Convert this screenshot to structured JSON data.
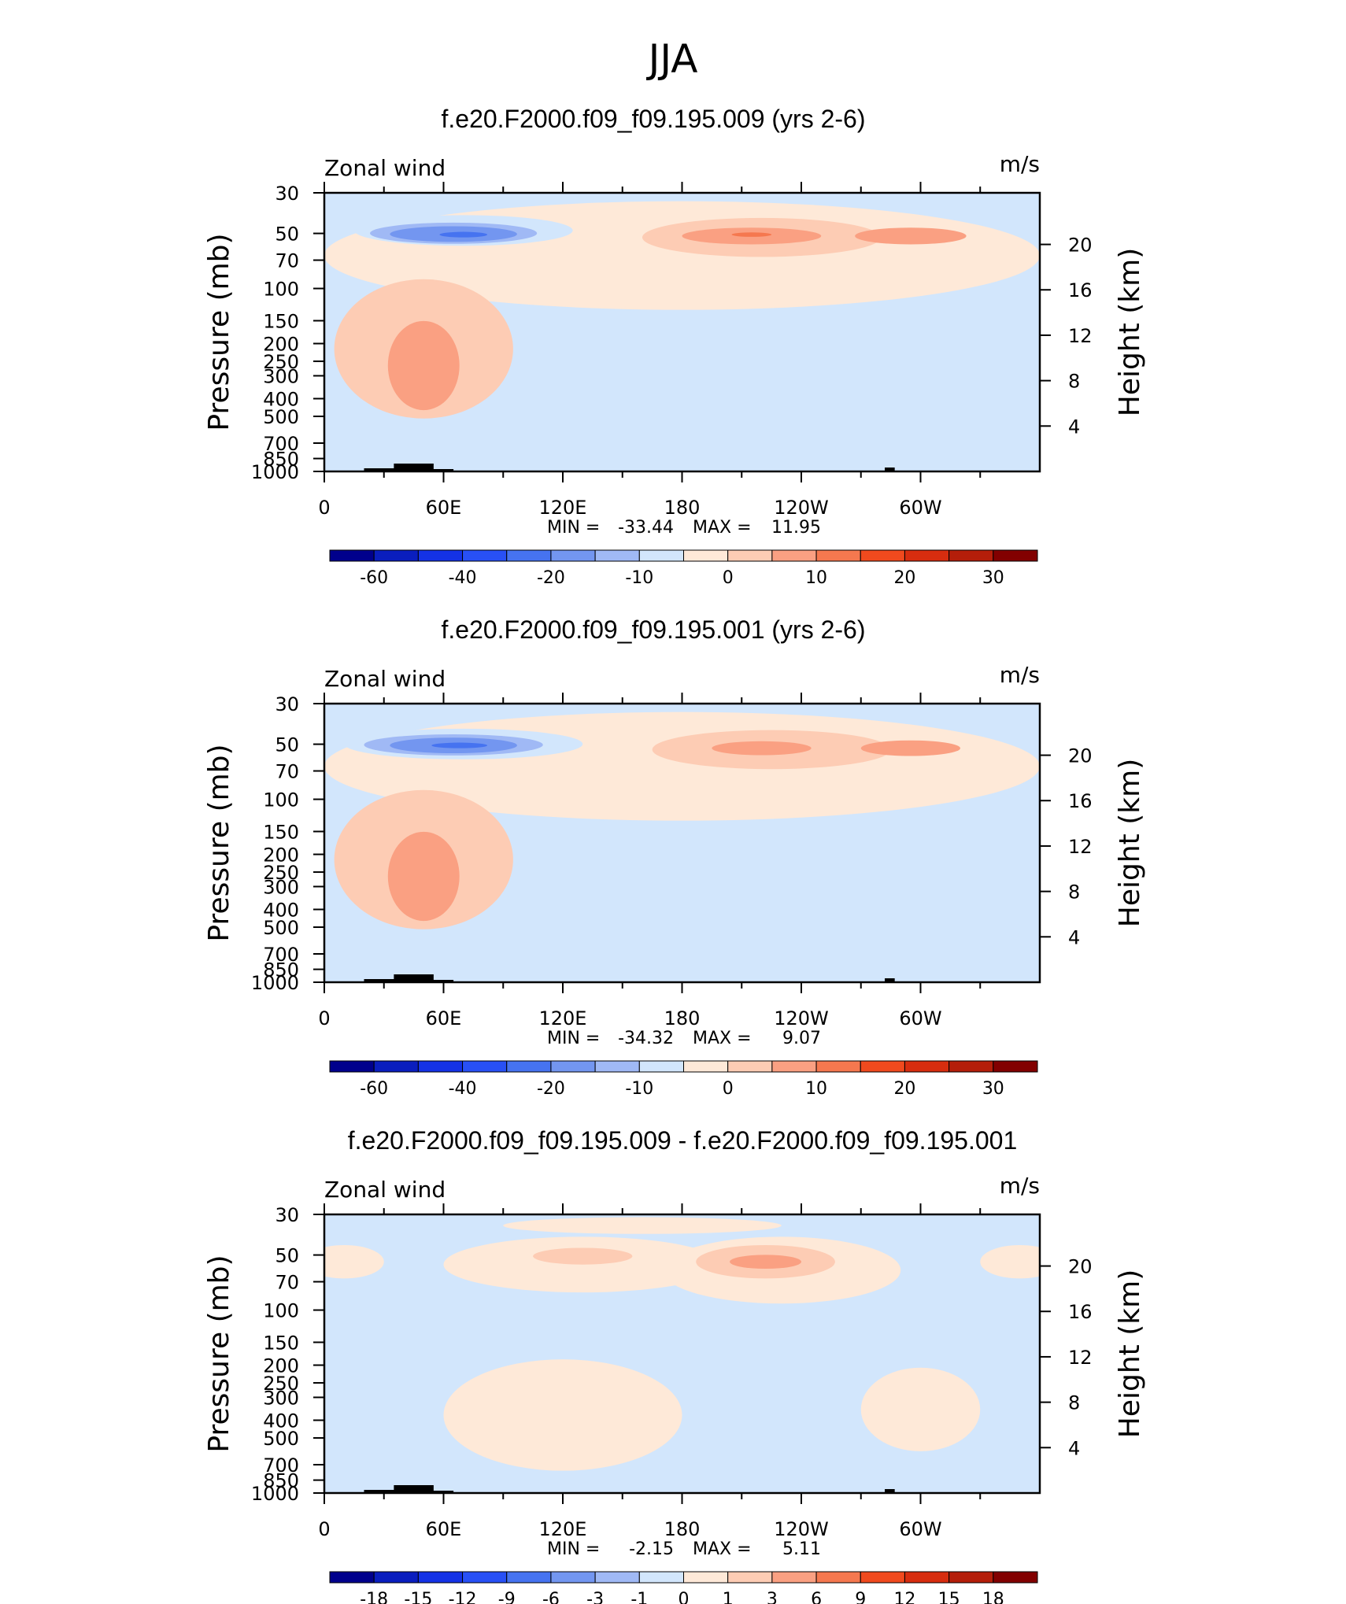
{
  "figure": {
    "title": "JJA",
    "panel_titles": [
      "f.e20.F2000.f09_f09.195.009 (yrs 2-6)",
      "f.e20.F2000.f09_f09.195.001 (yrs 2-6)",
      "f.e20.F2000.f09_f09.195.009 - f.e20.F2000.f09_f09.195.001"
    ]
  },
  "chart_data": [
    {
      "type": "contour",
      "title": "f.e20.F2000.f09_f09.195.009 (yrs 2-6)",
      "variable_label": "Zonal wind",
      "units_label": "m/s",
      "ylabel": "Pressure (mb)",
      "ylabel_right": "Height (km)",
      "x_ticks": [
        "0",
        "60E",
        "120E",
        "180",
        "120W",
        "60W"
      ],
      "y_ticks": [
        "30",
        "50",
        "70",
        "100",
        "150",
        "200",
        "250",
        "300",
        "400",
        "500",
        "700",
        "850",
        "1000"
      ],
      "y_ticks_right": [
        "20",
        "16",
        "12",
        "8",
        "4"
      ],
      "min_label": "MIN =",
      "min": "-33.44",
      "max_label": "MAX =",
      "max": "11.95",
      "colorbar_labels": [
        "-60",
        "-40",
        "-20",
        "-10",
        "0",
        "10",
        "20",
        "30"
      ],
      "colors": [
        "#00008c",
        "#0a1ebe",
        "#1432e6",
        "#2850f5",
        "#4673f0",
        "#7396f0",
        "#a0b9f5",
        "#d2e6fc",
        "#fee9d8",
        "#fdccb4",
        "#faa082",
        "#f5784f",
        "#f04a1e",
        "#d72d0f",
        "#b41e0a",
        "#820000"
      ],
      "features": [
        {
          "level": 0,
          "cx": 180,
          "cy": 225,
          "rx": 180,
          "ry": 195
        },
        {
          "level": -1,
          "cx": 70,
          "cy": 135,
          "rx": 55,
          "ry": 55
        },
        {
          "level": -2,
          "cx": 65,
          "cy": 145,
          "rx": 42,
          "ry": 38
        },
        {
          "level": -3,
          "cx": 65,
          "cy": 148,
          "rx": 32,
          "ry": 28
        },
        {
          "level": -4,
          "cx": 70,
          "cy": 150,
          "rx": 12,
          "ry": 10
        },
        {
          "level": 1,
          "cx": 220,
          "cy": 160,
          "rx": 60,
          "ry": 70
        },
        {
          "level": 2,
          "cx": 215,
          "cy": 155,
          "rx": 35,
          "ry": 30
        },
        {
          "level": 2,
          "cx": 295,
          "cy": 155,
          "rx": 28,
          "ry": 30
        },
        {
          "level": 3,
          "cx": 215,
          "cy": 150,
          "rx": 10,
          "ry": 8
        },
        {
          "level": 1,
          "cx": 50,
          "cy": 560,
          "rx": 45,
          "ry": 250
        },
        {
          "level": 2,
          "cx": 50,
          "cy": 620,
          "rx": 18,
          "ry": 160
        },
        {
          "level": -1,
          "cx": 220,
          "cy": 870,
          "rx": 35,
          "ry": 40
        }
      ]
    },
    {
      "type": "contour",
      "title": "f.e20.F2000.f09_f09.195.001 (yrs 2-6)",
      "variable_label": "Zonal wind",
      "units_label": "m/s",
      "ylabel": "Pressure (mb)",
      "ylabel_right": "Height (km)",
      "x_ticks": [
        "0",
        "60E",
        "120E",
        "180",
        "120W",
        "60W"
      ],
      "y_ticks": [
        "30",
        "50",
        "70",
        "100",
        "150",
        "200",
        "250",
        "300",
        "400",
        "500",
        "700",
        "850",
        "1000"
      ],
      "y_ticks_right": [
        "20",
        "16",
        "12",
        "8",
        "4"
      ],
      "min_label": "MIN =",
      "min": "-34.32",
      "max_label": "MAX =",
      "max": "9.07",
      "colorbar_labels": [
        "-60",
        "-40",
        "-20",
        "-10",
        "0",
        "10",
        "20",
        "30"
      ],
      "colors": [
        "#00008c",
        "#0a1ebe",
        "#1432e6",
        "#2850f5",
        "#4673f0",
        "#7396f0",
        "#a0b9f5",
        "#d2e6fc",
        "#fee9d8",
        "#fdccb4",
        "#faa082",
        "#f5784f",
        "#f04a1e",
        "#d72d0f",
        "#b41e0a",
        "#820000"
      ],
      "features": [
        {
          "level": 0,
          "cx": 180,
          "cy": 225,
          "rx": 180,
          "ry": 195
        },
        {
          "level": -1,
          "cx": 70,
          "cy": 145,
          "rx": 60,
          "ry": 55
        },
        {
          "level": -2,
          "cx": 65,
          "cy": 148,
          "rx": 45,
          "ry": 38
        },
        {
          "level": -3,
          "cx": 65,
          "cy": 150,
          "rx": 32,
          "ry": 28
        },
        {
          "level": -4,
          "cx": 68,
          "cy": 150,
          "rx": 14,
          "ry": 10
        },
        {
          "level": 1,
          "cx": 225,
          "cy": 165,
          "rx": 60,
          "ry": 70
        },
        {
          "level": 2,
          "cx": 220,
          "cy": 160,
          "rx": 25,
          "ry": 25
        },
        {
          "level": 2,
          "cx": 295,
          "cy": 160,
          "rx": 25,
          "ry": 28
        },
        {
          "level": 1,
          "cx": 50,
          "cy": 560,
          "rx": 45,
          "ry": 250
        },
        {
          "level": 2,
          "cx": 50,
          "cy": 620,
          "rx": 18,
          "ry": 160
        },
        {
          "level": -1,
          "cx": 220,
          "cy": 880,
          "rx": 30,
          "ry": 35
        }
      ]
    },
    {
      "type": "contour",
      "title": "f.e20.F2000.f09_f09.195.009 - f.e20.F2000.f09_f09.195.001",
      "variable_label": "Zonal wind",
      "units_label": "m/s",
      "ylabel": "Pressure (mb)",
      "ylabel_right": "Height (km)",
      "x_ticks": [
        "0",
        "60E",
        "120E",
        "180",
        "120W",
        "60W"
      ],
      "y_ticks": [
        "30",
        "50",
        "70",
        "100",
        "150",
        "200",
        "250",
        "300",
        "400",
        "500",
        "700",
        "850",
        "1000"
      ],
      "y_ticks_right": [
        "20",
        "16",
        "12",
        "8",
        "4"
      ],
      "min_label": "MIN =",
      "min": "-2.15",
      "max_label": "MAX =",
      "max": "5.11",
      "colorbar_labels": [
        "-18",
        "-15",
        "-12",
        "-9",
        "-6",
        "-3",
        "-1",
        "0",
        "1",
        "3",
        "6",
        "9",
        "12",
        "15",
        "18"
      ],
      "colors": [
        "#00008c",
        "#0a1ebe",
        "#1432e6",
        "#2850f5",
        "#4673f0",
        "#7396f0",
        "#a0b9f5",
        "#d2e6fc",
        "#fee9d8",
        "#fdccb4",
        "#faa082",
        "#f5784f",
        "#f04a1e",
        "#d72d0f",
        "#b41e0a",
        "#820000"
      ],
      "features": [
        {
          "level": 0,
          "cx": 130,
          "cy": 180,
          "rx": 70,
          "ry": 100
        },
        {
          "level": 0,
          "cx": 230,
          "cy": 200,
          "rx": 60,
          "ry": 120
        },
        {
          "level": 0,
          "cx": 10,
          "cy": 170,
          "rx": 20,
          "ry": 60
        },
        {
          "level": 0,
          "cx": 350,
          "cy": 170,
          "rx": 20,
          "ry": 60
        },
        {
          "level": 0,
          "cx": 160,
          "cy": 40,
          "rx": 70,
          "ry": 30
        },
        {
          "level": 1,
          "cx": 130,
          "cy": 150,
          "rx": 25,
          "ry": 30
        },
        {
          "level": 1,
          "cx": 222,
          "cy": 170,
          "rx": 35,
          "ry": 60
        },
        {
          "level": 2,
          "cx": 222,
          "cy": 170,
          "rx": 18,
          "ry": 25
        },
        {
          "level": -1,
          "cx": 22,
          "cy": 85,
          "rx": 10,
          "ry": 8
        },
        {
          "level": 0,
          "cx": 120,
          "cy": 720,
          "rx": 60,
          "ry": 200
        },
        {
          "level": 0,
          "cx": 300,
          "cy": 700,
          "rx": 30,
          "ry": 150
        }
      ]
    }
  ]
}
